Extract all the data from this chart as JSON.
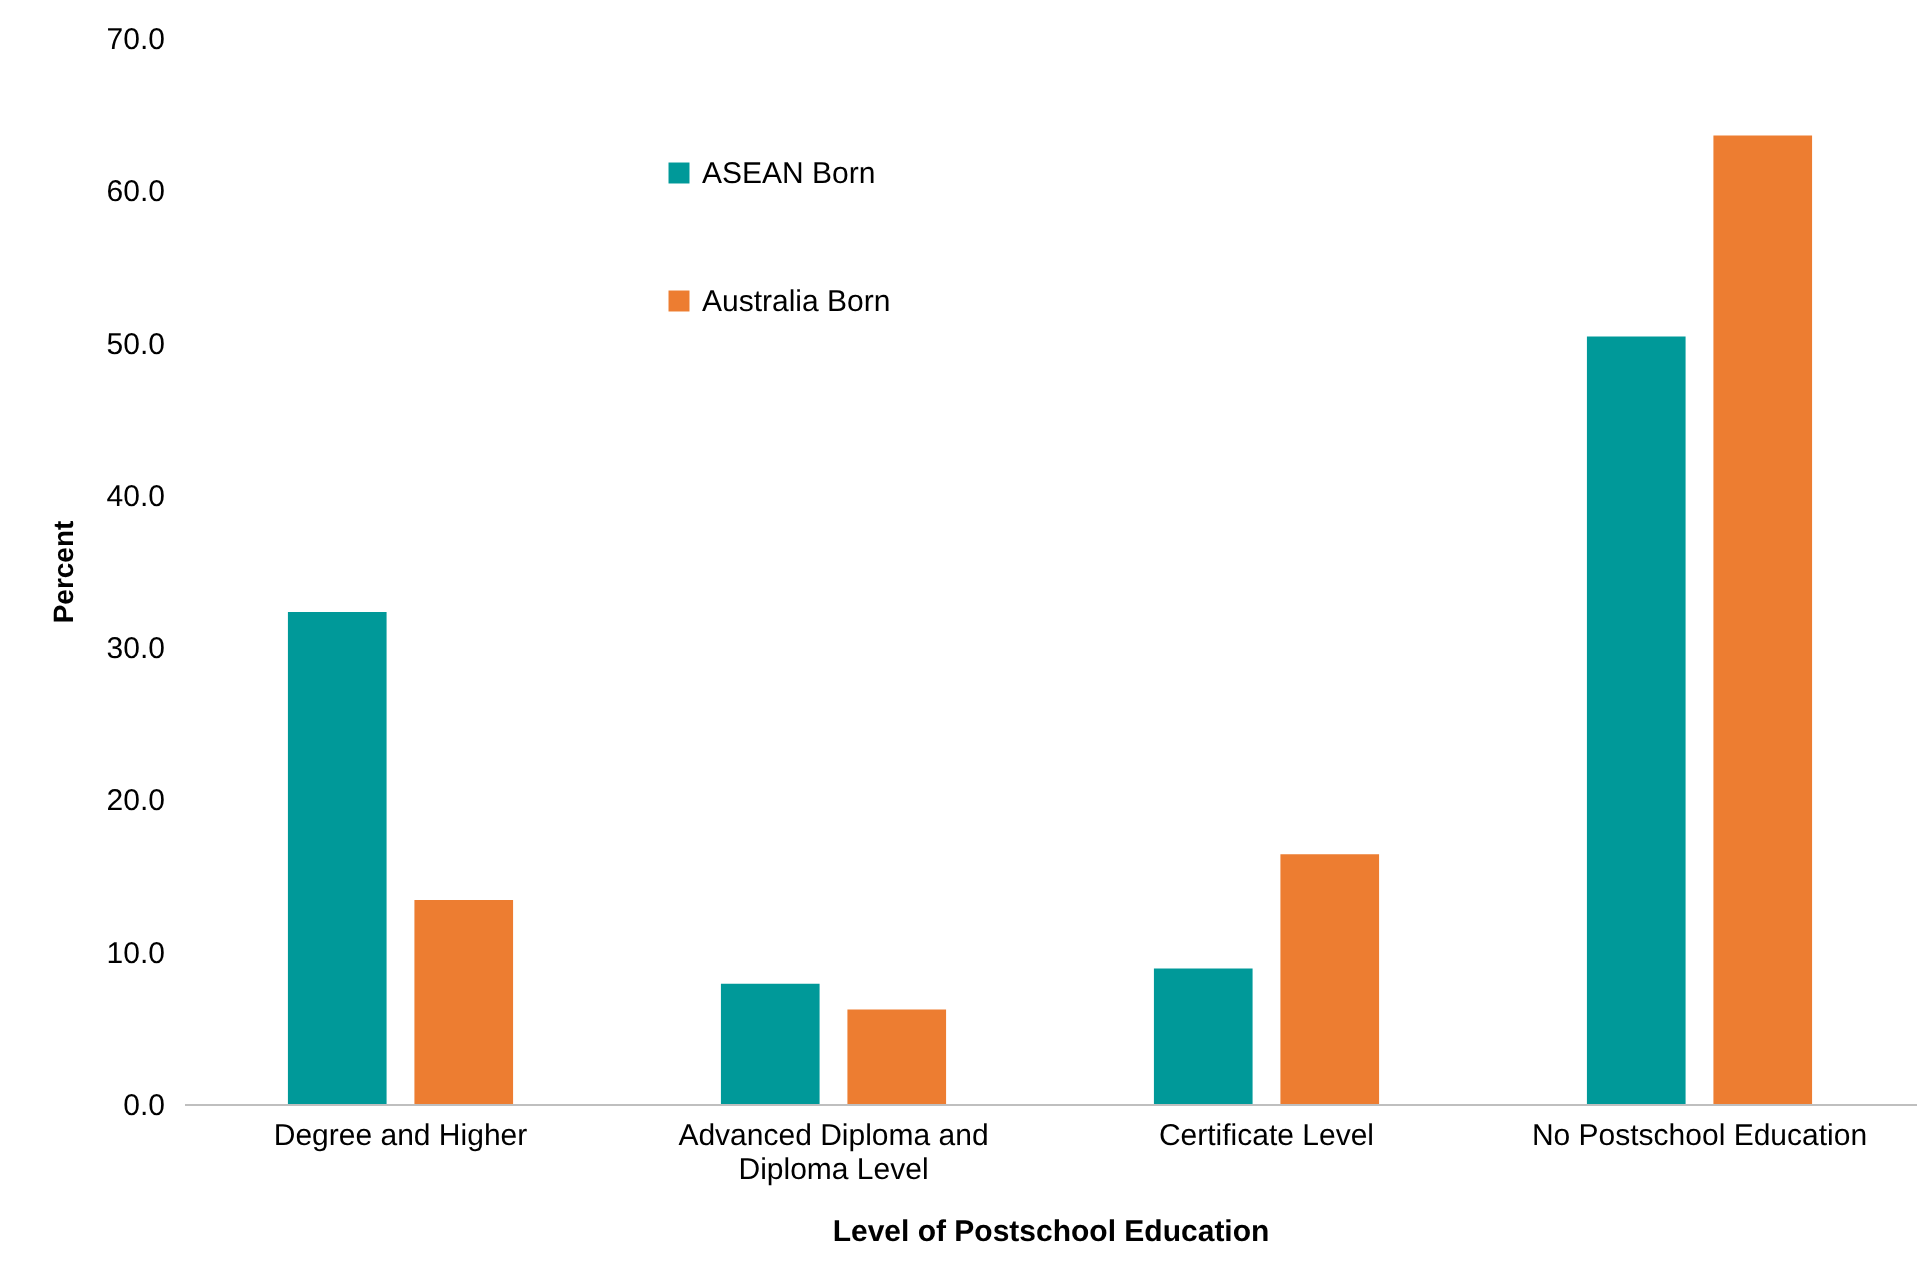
{
  "chart_data": {
    "type": "bar",
    "xlabel": "Level of Postschool Education",
    "ylabel": "Percent",
    "categories": [
      "Degree and Higher",
      "Advanced Diploma and Diploma Level",
      "Certificate Level",
      "No Postschool Education"
    ],
    "series": [
      {
        "name": "ASEAN Born",
        "color": "#009999",
        "values": [
          32.3,
          7.9,
          8.9,
          50.4
        ]
      },
      {
        "name": "Australia Born",
        "color": "#ed7d31",
        "values": [
          13.4,
          6.2,
          16.4,
          63.6
        ]
      }
    ],
    "ylim": [
      0,
      70
    ],
    "yticks": [
      {
        "value": 0,
        "label": "0.0"
      },
      {
        "value": 10,
        "label": "10.0"
      },
      {
        "value": 20,
        "label": "20.0"
      },
      {
        "value": 30,
        "label": "30.0"
      },
      {
        "value": 40,
        "label": "40.0"
      },
      {
        "value": 50,
        "label": "50.0"
      },
      {
        "value": 60,
        "label": "60.0"
      },
      {
        "value": 70,
        "label": "70.0"
      }
    ],
    "grid": false,
    "legend": "top left"
  }
}
